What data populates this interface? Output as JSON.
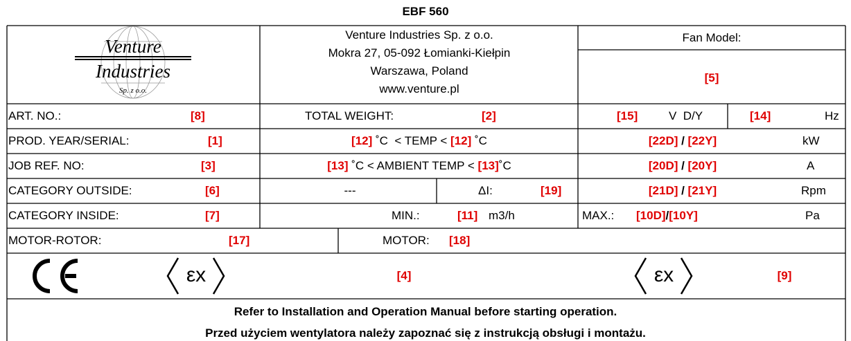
{
  "title": "EBF 560",
  "logo": {
    "line1": "Venture",
    "line2": "Industries",
    "line3": "Sp. z o.o."
  },
  "address": [
    "Venture Industries Sp. z o.o.",
    "Mokra 27, 05-092 Łomianki-Kiełpin",
    "Warszawa, Poland",
    "www.venture.pl"
  ],
  "fan_model": {
    "label": "Fan Model:",
    "value": "[5]"
  },
  "art_no": {
    "label": "ART. NO.:",
    "value": "[8]"
  },
  "total_weight": {
    "label": "TOTAL WEIGHT:",
    "value": "[2]"
  },
  "voltage": {
    "value": "[15]",
    "unit": "V  D/Y"
  },
  "frequency": {
    "value": "[14]",
    "unit": "Hz"
  },
  "prod_year": {
    "label": "PROD. YEAR/SERIAL:",
    "value": "[1]"
  },
  "temp": {
    "min": "[12]",
    "text": " ˚C  < TEMP < ",
    "max": "[12]",
    "unit": " ˚C"
  },
  "power": {
    "d": "[22D]",
    "sep": " / ",
    "y": "[22Y]",
    "unit": "kW"
  },
  "job_ref": {
    "label": "JOB REF. NO:",
    "value": "[3]"
  },
  "ambient": {
    "min": "[13]",
    "text": " ˚C < AMBIENT TEMP < ",
    "max": "[13]",
    "unit": "˚C"
  },
  "current": {
    "d": "[20D]",
    "sep": " / ",
    "y": "[20Y]",
    "unit": "A"
  },
  "category_outside": {
    "label": "CATEGORY OUTSIDE:",
    "value": "[6]"
  },
  "dash": "---",
  "delta_i": {
    "label": "ΔI:",
    "value": "[19]"
  },
  "speed": {
    "d": "[21D]",
    "sep": " / ",
    "y": "[21Y]",
    "unit": "Rpm"
  },
  "category_inside": {
    "label": "CATEGORY INSIDE:",
    "value": "[7]"
  },
  "min_flow": {
    "label": "MIN.:",
    "value": "[11]",
    "unit": "m3/h"
  },
  "max_pressure": {
    "label": "MAX.:",
    "d": "[10D]",
    "sep": "/",
    "y": "[10Y]",
    "unit": "Pa"
  },
  "motor_rotor": {
    "label": "MOTOR-ROTOR:",
    "value": "[17]"
  },
  "motor": {
    "label": "MOTOR:",
    "value": "[18]"
  },
  "ex_symbol": "εx",
  "marking_1": "[4]",
  "marking_2": "[9]",
  "footer": [
    "Refer to Installation and Operation Manual before starting operation.",
    "Przed użyciem wentylatora należy zapoznać się z instrukcją obsługi i montażu."
  ]
}
